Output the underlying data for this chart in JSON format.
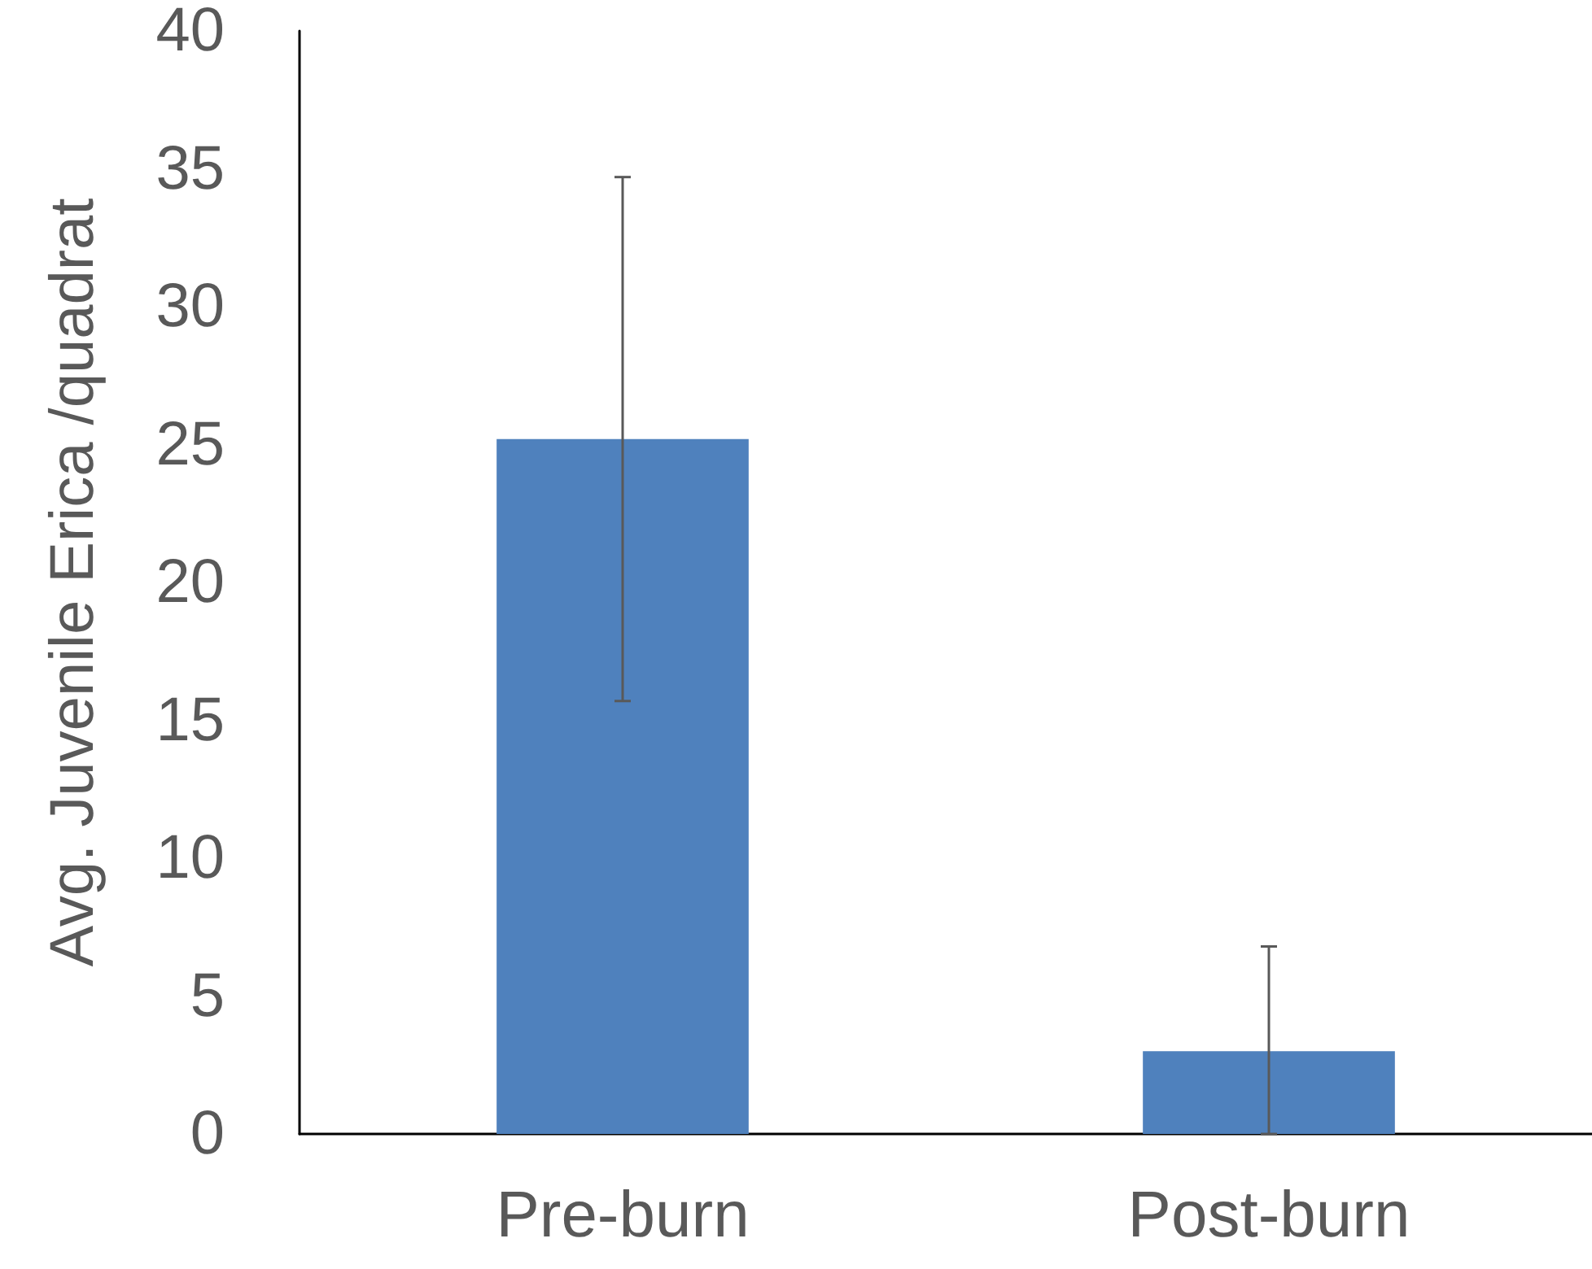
{
  "chart_data": {
    "type": "bar",
    "ylabel": "Avg. Juvenile Erica /quadrat",
    "categories": [
      "Pre-burn",
      "Post-burn"
    ],
    "series": [
      {
        "color": "#4f81bd",
        "values": [
          25.2,
          3.0
        ],
        "errors": [
          [
            15.7,
            34.7
          ],
          [
            0,
            6.8
          ]
        ]
      }
    ],
    "ylim": [
      0,
      40
    ],
    "yticks": [
      0,
      5,
      10,
      15,
      20,
      25,
      30,
      35,
      40
    ],
    "grid": false
  }
}
